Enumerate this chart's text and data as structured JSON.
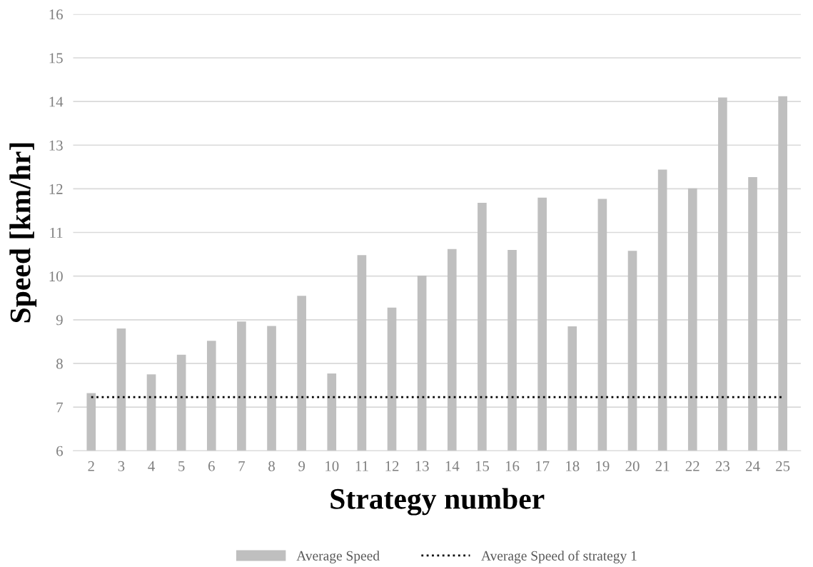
{
  "chart_data": {
    "type": "bar",
    "xlabel": "Strategy number",
    "ylabel": "Speed [km/hr]",
    "categories": [
      "2",
      "3",
      "4",
      "5",
      "6",
      "7",
      "8",
      "9",
      "10",
      "11",
      "12",
      "13",
      "14",
      "15",
      "16",
      "17",
      "18",
      "19",
      "20",
      "21",
      "22",
      "23",
      "24",
      "25"
    ],
    "series": [
      {
        "name": "Average Speed",
        "color": "#bfbfbf",
        "values": [
          7.32,
          8.8,
          7.75,
          8.2,
          8.52,
          8.96,
          8.86,
          9.55,
          7.77,
          10.48,
          9.28,
          10.01,
          10.62,
          11.68,
          10.6,
          11.8,
          8.85,
          11.77,
          10.58,
          12.44,
          12.01,
          14.09,
          12.27,
          14.12
        ]
      }
    ],
    "ref_lines": [
      {
        "axis": "y",
        "value": 7.23,
        "label": "Average Speed of strategy 1",
        "color": "#000000",
        "line_style": "dotted"
      }
    ],
    "ylim": [
      6,
      16
    ],
    "yticks": [
      6,
      7,
      8,
      9,
      10,
      11,
      12,
      13,
      14,
      15,
      16
    ],
    "grid": "y",
    "legend": "bottom"
  }
}
